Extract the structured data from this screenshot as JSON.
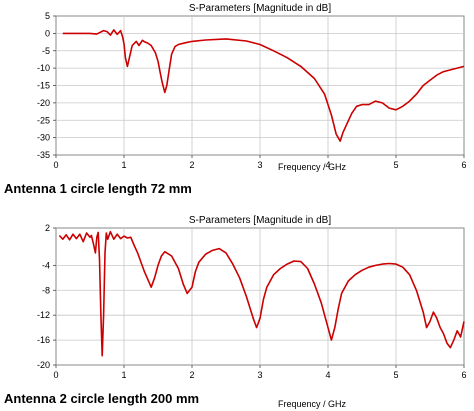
{
  "chart_data": [
    {
      "type": "line",
      "title": "S-Parameters [Magnitude in dB]",
      "xlabel": "Frequency / GHz",
      "ylabel": "",
      "caption": "Antenna 1 circle length 72 mm",
      "xlim": [
        0,
        6
      ],
      "ylim": [
        -35,
        5
      ],
      "xticks": [
        "0",
        "1",
        "2",
        "3",
        "4",
        "5",
        "6"
      ],
      "yticks": [
        "5",
        "0",
        "-5",
        "-10",
        "-15",
        "-20",
        "-25",
        "-30",
        "-35"
      ],
      "grid": true,
      "series": [
        {
          "color": "#cc0000",
          "x": [
            0.1,
            0.3,
            0.5,
            0.6,
            0.65,
            0.7,
            0.75,
            0.8,
            0.85,
            0.9,
            0.95,
            0.98,
            1.0,
            1.02,
            1.05,
            1.08,
            1.12,
            1.18,
            1.22,
            1.27,
            1.3,
            1.35,
            1.4,
            1.43,
            1.46,
            1.5,
            1.53,
            1.56,
            1.6,
            1.63,
            1.66,
            1.7,
            1.75,
            1.8,
            1.9,
            2.0,
            2.2,
            2.5,
            2.8,
            3.0,
            3.2,
            3.4,
            3.6,
            3.8,
            3.95,
            4.05,
            4.12,
            4.18,
            4.22,
            4.28,
            4.35,
            4.42,
            4.5,
            4.6,
            4.7,
            4.8,
            4.9,
            5.0,
            5.1,
            5.2,
            5.3,
            5.4,
            5.5,
            5.6,
            5.7,
            5.8,
            5.9,
            6.0
          ],
          "values": [
            0,
            0,
            0,
            -0.2,
            0.3,
            0.8,
            0.5,
            -0.5,
            1.0,
            -0.3,
            0.8,
            -1,
            -3,
            -7,
            -9.5,
            -7,
            -3.5,
            -2.3,
            -3.5,
            -2,
            -2.4,
            -2.8,
            -3.5,
            -4.5,
            -5.5,
            -8,
            -11,
            -14,
            -17,
            -15,
            -11,
            -6,
            -3.8,
            -3.2,
            -2.7,
            -2.3,
            -1.9,
            -1.6,
            -2.2,
            -3.2,
            -5.0,
            -7.0,
            -9.5,
            -13.0,
            -17.5,
            -23.5,
            -29.0,
            -31.0,
            -28.5,
            -26.0,
            -23.0,
            -21.0,
            -20.5,
            -20.5,
            -19.5,
            -20.0,
            -21.5,
            -22.0,
            -21.0,
            -19.5,
            -17.5,
            -15.0,
            -13.5,
            -12.0,
            -11.0,
            -10.5,
            -10.0,
            -9.5
          ]
        }
      ]
    },
    {
      "type": "line",
      "title": "S-Parameters [Magnitude in dB]",
      "xlabel": "Frequency / GHz",
      "ylabel": "",
      "caption": "Antenna 2 circle length 200 mm",
      "xlim": [
        0,
        6
      ],
      "ylim": [
        -20,
        2
      ],
      "xticks": [
        "0",
        "1",
        "2",
        "3",
        "4",
        "5",
        "6"
      ],
      "yticks": [
        "2",
        "-4",
        "-8",
        "-12",
        "-16",
        "-20"
      ],
      "grid": true,
      "series": [
        {
          "color": "#cc0000",
          "x": [
            0.05,
            0.1,
            0.15,
            0.2,
            0.25,
            0.3,
            0.35,
            0.4,
            0.45,
            0.5,
            0.52,
            0.55,
            0.58,
            0.6,
            0.62,
            0.64,
            0.66,
            0.68,
            0.7,
            0.72,
            0.74,
            0.76,
            0.8,
            0.85,
            0.9,
            0.95,
            1.0,
            1.05,
            1.1,
            1.15,
            1.2,
            1.3,
            1.4,
            1.45,
            1.5,
            1.55,
            1.6,
            1.7,
            1.8,
            1.87,
            1.93,
            2.0,
            2.05,
            2.1,
            2.2,
            2.3,
            2.4,
            2.5,
            2.6,
            2.7,
            2.8,
            2.9,
            2.95,
            3.0,
            3.05,
            3.1,
            3.2,
            3.3,
            3.4,
            3.5,
            3.6,
            3.7,
            3.8,
            3.9,
            4.0,
            4.05,
            4.1,
            4.15,
            4.2,
            4.3,
            4.4,
            4.5,
            4.6,
            4.7,
            4.8,
            4.9,
            5.0,
            5.1,
            5.2,
            5.3,
            5.4,
            5.45,
            5.5,
            5.55,
            5.6,
            5.65,
            5.7,
            5.75,
            5.8,
            5.85,
            5.9,
            5.95,
            6.0
          ],
          "values": [
            0.8,
            0.2,
            0.9,
            0.1,
            1.0,
            0.3,
            1.0,
            -0.2,
            1.2,
            0.5,
            0.8,
            -0.5,
            -2.0,
            0.5,
            1.3,
            -3.0,
            -12.0,
            -18.5,
            -12.0,
            -2.0,
            1.2,
            0.2,
            1.4,
            0.2,
            1.0,
            0.3,
            0.7,
            0.4,
            0.5,
            -0.8,
            -2.0,
            -5.0,
            -7.5,
            -6.0,
            -4.0,
            -2.5,
            -1.8,
            -2.5,
            -4.5,
            -7.0,
            -8.5,
            -7.5,
            -5.0,
            -3.5,
            -2.2,
            -1.6,
            -1.3,
            -2.0,
            -3.8,
            -6.0,
            -9.0,
            -12.5,
            -14.0,
            -12.5,
            -9.5,
            -7.5,
            -5.5,
            -4.5,
            -3.8,
            -3.3,
            -3.4,
            -4.5,
            -7.0,
            -10.0,
            -14.0,
            -16.0,
            -14.0,
            -11.0,
            -8.5,
            -6.5,
            -5.5,
            -4.8,
            -4.3,
            -4.0,
            -3.8,
            -3.7,
            -3.8,
            -4.3,
            -5.5,
            -8.0,
            -11.5,
            -14.0,
            -13.0,
            -11.5,
            -12.5,
            -14.0,
            -15.0,
            -16.5,
            -17.2,
            -16.0,
            -14.5,
            -15.5,
            -13.0
          ]
        }
      ]
    }
  ]
}
